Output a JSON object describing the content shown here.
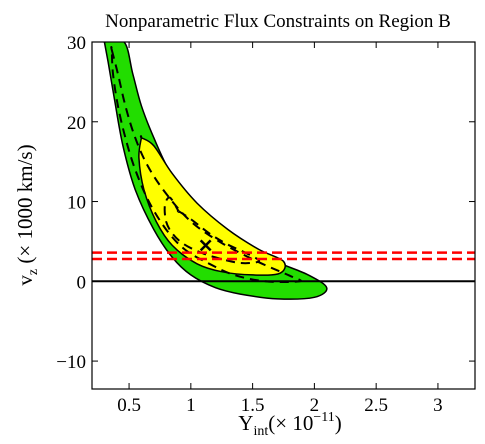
{
  "chart_data": {
    "type": "contour",
    "title": "Nonparametric Flux Constraints on Region B",
    "xlabel": {
      "main": "Y",
      "subscript": "int",
      "rest": "(× 10",
      "superscript": "−11",
      "close": ")"
    },
    "ylabel": {
      "main": "v",
      "subscript": "z",
      "rest": "(× 1000 km/s)"
    },
    "xlim": [
      0.2,
      3.3
    ],
    "ylim": [
      -13.5,
      30
    ],
    "xticks": [
      {
        "value": 0.5,
        "label": "0.5"
      },
      {
        "value": 1.0,
        "label": "1"
      },
      {
        "value": 1.5,
        "label": "1.5"
      },
      {
        "value": 2.0,
        "label": "2"
      },
      {
        "value": 2.5,
        "label": "2.5"
      },
      {
        "value": 3.0,
        "label": "3"
      }
    ],
    "yticks": [
      {
        "value": -10,
        "label": "−10"
      },
      {
        "value": 0,
        "label": "0"
      },
      {
        "value": 10,
        "label": "10"
      },
      {
        "value": 20,
        "label": "20"
      },
      {
        "value": 30,
        "label": "30"
      }
    ],
    "grid": false,
    "colors": {
      "outer_region": "#22dd00",
      "inner_region": "#ffff00",
      "reference_lines": "#ff0000",
      "zero_line": "#000000"
    },
    "outer_region_boundary": [
      [
        0.3,
        30
      ],
      [
        0.46,
        30
      ],
      [
        0.53,
        26
      ],
      [
        0.6,
        22
      ],
      [
        0.7,
        18
      ],
      [
        0.82,
        14
      ],
      [
        0.98,
        10
      ],
      [
        1.18,
        7
      ],
      [
        1.42,
        4.5
      ],
      [
        1.7,
        2.4
      ],
      [
        1.95,
        0.8
      ],
      [
        2.1,
        -0.8
      ],
      [
        2.0,
        -2.0
      ],
      [
        1.7,
        -2.2
      ],
      [
        1.4,
        -1.6
      ],
      [
        1.2,
        -0.8
      ],
      [
        1.0,
        0.8
      ],
      [
        0.85,
        3.0
      ],
      [
        0.7,
        6.5
      ],
      [
        0.55,
        11.5
      ],
      [
        0.45,
        17
      ],
      [
        0.38,
        23
      ],
      [
        0.33,
        27.5
      ],
      [
        0.3,
        30
      ]
    ],
    "inner_region_boundary": [
      [
        0.6,
        18
      ],
      [
        0.7,
        17
      ],
      [
        0.85,
        13.5
      ],
      [
        1.05,
        9.8
      ],
      [
        1.3,
        6.5
      ],
      [
        1.55,
        4.0
      ],
      [
        1.75,
        2.5
      ],
      [
        1.72,
        1.0
      ],
      [
        1.5,
        0.8
      ],
      [
        1.25,
        1.2
      ],
      [
        1.05,
        2.2
      ],
      [
        0.85,
        4.5
      ],
      [
        0.72,
        7.5
      ],
      [
        0.62,
        11.5
      ],
      [
        0.58,
        15.5
      ],
      [
        0.6,
        18
      ]
    ],
    "outer_dashed_contour": [
      [
        0.36,
        29
      ],
      [
        0.41,
        26
      ],
      [
        0.47,
        22
      ],
      [
        0.55,
        18
      ],
      [
        0.65,
        14.5
      ],
      [
        0.8,
        11
      ],
      [
        1.0,
        7.5
      ],
      [
        1.25,
        4.8
      ],
      [
        1.55,
        2.4
      ],
      [
        1.8,
        0.7
      ],
      [
        1.88,
        0.0
      ],
      [
        1.6,
        0.0
      ],
      [
        1.35,
        0.8
      ],
      [
        1.15,
        2.2
      ],
      [
        0.95,
        4.0
      ],
      [
        0.8,
        6.5
      ],
      [
        0.66,
        10
      ],
      [
        0.55,
        14
      ],
      [
        0.47,
        18
      ],
      [
        0.41,
        22
      ],
      [
        0.37,
        26
      ],
      [
        0.36,
        29
      ]
    ],
    "inner_dashed_contour": [
      [
        0.9,
        8.8
      ],
      [
        1.0,
        7.8
      ],
      [
        1.15,
        6.0
      ],
      [
        1.3,
        4.6
      ],
      [
        1.48,
        3.3
      ],
      [
        1.55,
        2.5
      ],
      [
        1.4,
        2.3
      ],
      [
        1.2,
        3.0
      ],
      [
        1.05,
        3.8
      ],
      [
        0.93,
        4.8
      ],
      [
        0.85,
        6.0
      ],
      [
        0.8,
        7.5
      ],
      [
        0.79,
        9.5
      ],
      [
        0.83,
        10.5
      ],
      [
        0.9,
        8.8
      ]
    ],
    "best_fit_marker": {
      "x": 1.12,
      "y": 4.5,
      "symbol": "×"
    },
    "horizontal_reference_lines": [
      {
        "y": 3.6,
        "style": "dashed",
        "color": "#ff0000"
      },
      {
        "y": 2.8,
        "style": "dashed",
        "color": "#ff0000"
      },
      {
        "y": 0,
        "style": "solid",
        "color": "#000000"
      }
    ]
  }
}
